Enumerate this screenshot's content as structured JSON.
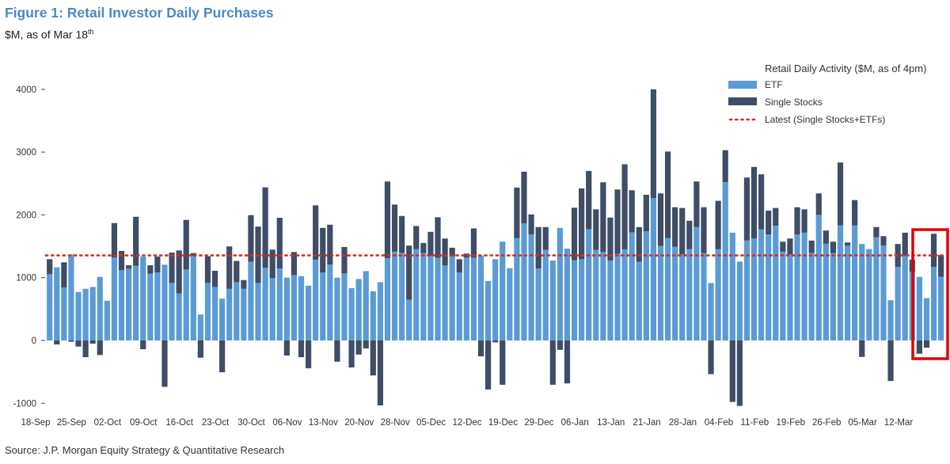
{
  "header": {
    "title": "Figure 1: Retail Investor Daily Purchases",
    "subtitle": "$M, as of Mar 18",
    "subtitle_sup": "th",
    "source": "Source: J.P. Morgan Equity Strategy & Quantitative Research"
  },
  "chart_data": {
    "type": "bar",
    "stacked": true,
    "title": "Figure 1: Retail Investor Daily Purchases",
    "ylabel": "$M, as of Mar 18th",
    "xlabel": "",
    "ylim": [
      -1000,
      4000
    ],
    "yticks": [
      4000,
      3000,
      2000,
      1000,
      0,
      -1000
    ],
    "xticks": [
      "18-Sep",
      "25-Sep",
      "02-Oct",
      "09-Oct",
      "16-Oct",
      "23-Oct",
      "30-Oct",
      "06-Nov",
      "13-Nov",
      "20-Nov",
      "28-Nov",
      "05-Dec",
      "12-Dec",
      "19-Dec",
      "29-Dec",
      "06-Jan",
      "13-Jan",
      "21-Jan",
      "28-Jan",
      "04-Feb",
      "11-Feb",
      "19-Feb",
      "26-Feb",
      "05-Mar",
      "12-Mar"
    ],
    "grid": false,
    "legend": {
      "title": "Retail Daily Activity ($M, as of 4pm)",
      "placement": "top-right"
    },
    "series": [
      {
        "name": "ETF",
        "color": "#5b9bd5",
        "values": [
          1055,
          1165,
          845,
          1370,
          772,
          823,
          852,
          1013,
          633,
          1320,
          1118,
          1143,
          1190,
          1337,
          1063,
          1084,
          1207,
          916,
          751,
          1130,
          1350,
          413,
          916,
          852,
          667,
          823,
          928,
          823,
          1253,
          916,
          1160,
          992,
          1148,
          1000,
          1042,
          1025,
          873,
          1287,
          1084,
          1211,
          1000,
          1068,
          835,
          979,
          1105,
          785,
          928,
          1308,
          1414,
          1392,
          650,
          1456,
          1392,
          1350,
          1316,
          1194,
          1342,
          1084,
          1320,
          1316,
          1350,
          949,
          1295,
          1574,
          1152,
          1633,
          1865,
          1688,
          1148,
          1443,
          1274,
          1793,
          1464,
          1278,
          1295,
          1772,
          1443,
          1409,
          1274,
          1380,
          1451,
          1722,
          1253,
          1738,
          2270,
          1506,
          1633,
          1494,
          1371,
          1456,
          1806,
          1392,
          916,
          1456,
          2523,
          1717,
          1257,
          1595,
          1624,
          1772,
          1688,
          1827,
          1414,
          1371,
          1688,
          1717,
          1392,
          2000,
          1540,
          1392,
          1835,
          1510,
          1835,
          1536,
          1456,
          1646,
          1510,
          641,
          1173,
          1350,
          1097,
          1013,
          675,
          1173,
          1013
        ]
      },
      {
        "name": "Single Stocks",
        "color": "#3f4d66",
        "values": [
          240,
          -63,
          400,
          -20,
          -97,
          -266,
          -50,
          -232,
          0,
          550,
          308,
          55,
          780,
          -139,
          135,
          253,
          -738,
          484,
          683,
          790,
          42,
          -274,
          426,
          258,
          -506,
          675,
          338,
          139,
          743,
          898,
          1279,
          455,
          806,
          -240,
          367,
          -266,
          -443,
          865,
          709,
          633,
          -338,
          421,
          -430,
          -224,
          -127,
          -557,
          -1034,
          1224,
          751,
          591,
          861,
          367,
          161,
          380,
          646,
          430,
          135,
          211,
          64,
          469,
          -253,
          -780,
          -30,
          -705,
          0,
          802,
          823,
          320,
          658,
          363,
          -705,
          -148,
          -684,
          836,
          1127,
          928,
          646,
          1110,
          684,
          1025,
          1355,
          670,
          553,
          583,
          1730,
          836,
          1376,
          628,
          739,
          451,
          726,
          730,
          -536,
          768,
          507,
          -979,
          -1042,
          1000,
          1140,
          874,
          380,
          283,
          160,
          253,
          434,
          372,
          199,
          342,
          211,
          182,
          1000,
          51,
          401,
          -262,
          0,
          160,
          152,
          -646,
          363,
          367,
          190,
          -211,
          -114,
          527,
          346
        ]
      }
    ],
    "reference_line": {
      "name": "Latest (Single Stocks+ETFs)",
      "value": 1355,
      "color": "#d0302c",
      "style": "dotted"
    },
    "highlight_box_color": "#e00000"
  }
}
